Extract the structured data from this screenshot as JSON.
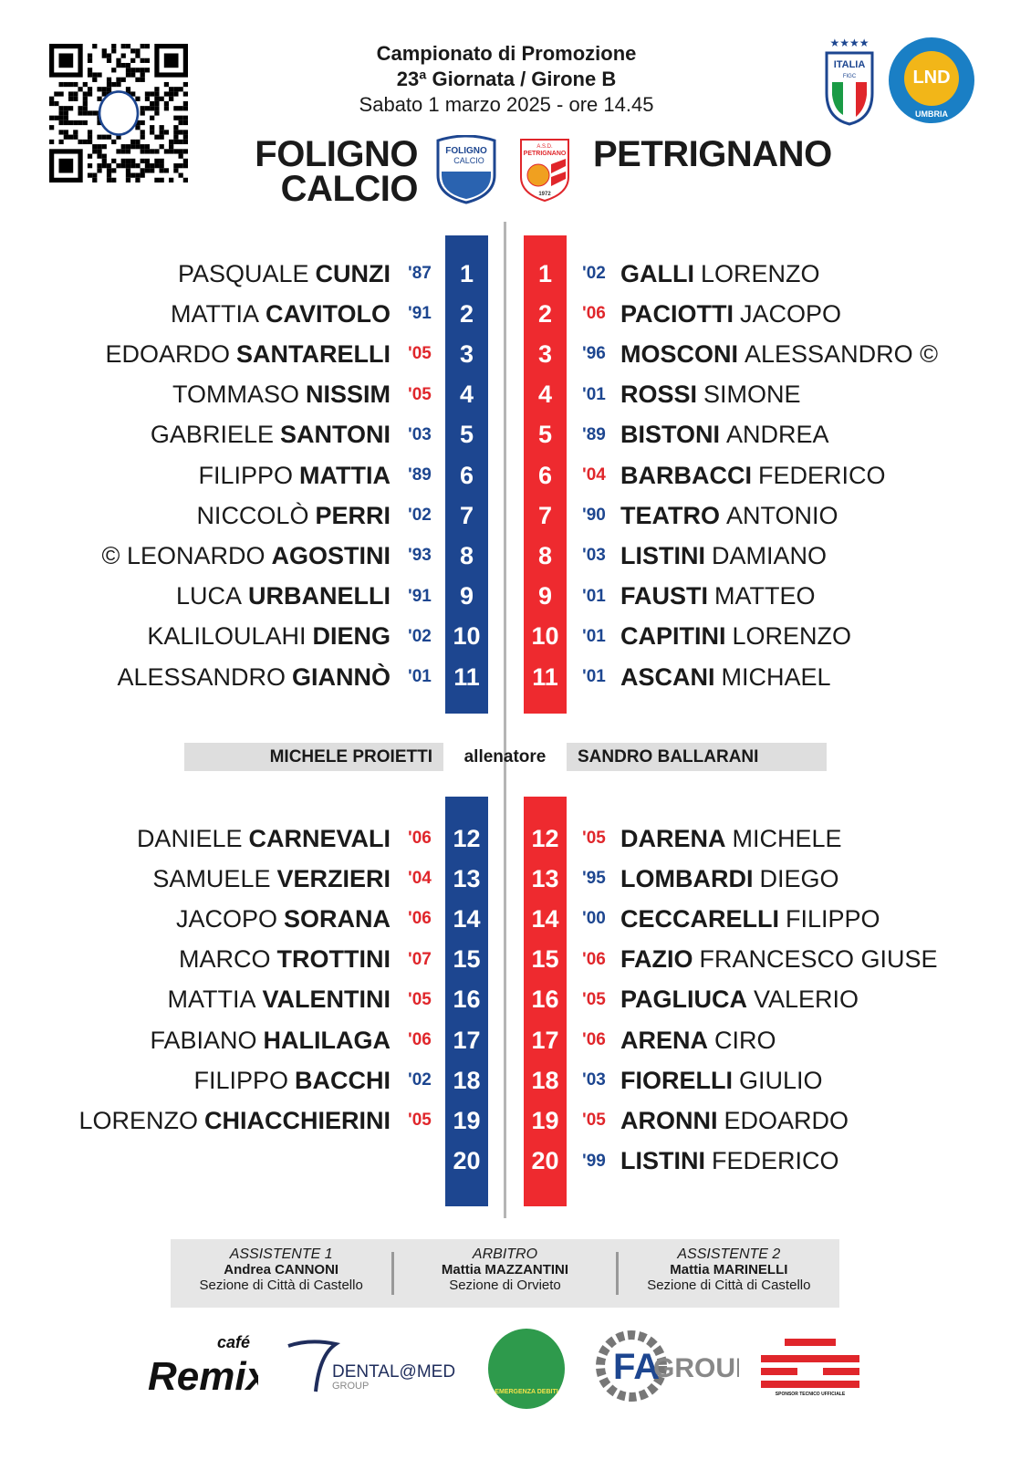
{
  "header": {
    "competition": "Campionato di Promozione",
    "round": "23ª Giornata / Girone B",
    "datetime": "Sabato 1 marzo 2025 - ore 14.45"
  },
  "home": {
    "name_line1": "FOLIGNO",
    "name_line2": "CALCIO",
    "logo_text": "FOLIGNO CALCIO",
    "coach": "MICHELE PROIETTI",
    "starters": [
      {
        "first": "PASQUALE",
        "last": "CUNZI",
        "year": "'87",
        "num": "1",
        "u": false
      },
      {
        "first": "MATTIA",
        "last": "CAVITOLO",
        "year": "'91",
        "num": "2",
        "u": false
      },
      {
        "first": "EDOARDO",
        "last": "SANTARELLI",
        "year": "'05",
        "num": "3",
        "u": true
      },
      {
        "first": "TOMMASO",
        "last": "NISSIM",
        "year": "'05",
        "num": "4",
        "u": true
      },
      {
        "first": "GABRIELE",
        "last": "SANTONI",
        "year": "'03",
        "num": "5",
        "u": false
      },
      {
        "first": "FILIPPO",
        "last": "MATTIA",
        "year": "'89",
        "num": "6",
        "u": false
      },
      {
        "first": "NICCOLÒ",
        "last": "PERRI",
        "year": "'02",
        "num": "7",
        "u": false
      },
      {
        "first": "© LEONARDO",
        "last": "AGOSTINI",
        "year": "'93",
        "num": "8",
        "u": false
      },
      {
        "first": "LUCA",
        "last": "URBANELLI",
        "year": "'91",
        "num": "9",
        "u": false
      },
      {
        "first": "KALILOULAHI",
        "last": "DIENG",
        "year": "'02",
        "num": "10",
        "u": false
      },
      {
        "first": "ALESSANDRO",
        "last": "GIANNÒ",
        "year": "'01",
        "num": "11",
        "u": false
      }
    ],
    "bench": [
      {
        "first": "DANIELE",
        "last": "CARNEVALI",
        "year": "'06",
        "num": "12",
        "u": true
      },
      {
        "first": "SAMUELE",
        "last": "VERZIERI",
        "year": "'04",
        "num": "13",
        "u": true
      },
      {
        "first": "JACOPO",
        "last": "SORANA",
        "year": "'06",
        "num": "14",
        "u": true
      },
      {
        "first": "MARCO",
        "last": "TROTTINI",
        "year": "'07",
        "num": "15",
        "u": true
      },
      {
        "first": "MATTIA",
        "last": "VALENTINI",
        "year": "'05",
        "num": "16",
        "u": true
      },
      {
        "first": "FABIANO",
        "last": "HALILAGA",
        "year": "'06",
        "num": "17",
        "u": true
      },
      {
        "first": "FILIPPO",
        "last": "BACCHI",
        "year": "'02",
        "num": "18",
        "u": false
      },
      {
        "first": "LORENZO",
        "last": "CHIACCHIERINI",
        "year": "'05",
        "num": "19",
        "u": true
      },
      {
        "first": "",
        "last": "",
        "year": "",
        "num": "20",
        "u": false
      }
    ]
  },
  "away": {
    "name": "PETRIGNANO",
    "logo_text": "A.S.D. PETRIGNANO",
    "logo_year": "1972",
    "coach": "SANDRO BALLARANI",
    "starters": [
      {
        "last": "GALLI",
        "first": "LORENZO",
        "year": "'02",
        "num": "1",
        "u": false
      },
      {
        "last": "PACIOTTI",
        "first": "JACOPO",
        "year": "'06",
        "num": "2",
        "u": true
      },
      {
        "last": "MOSCONI",
        "first": "ALESSANDRO ©",
        "year": "'96",
        "num": "3",
        "u": false
      },
      {
        "last": "ROSSI",
        "first": "SIMONE",
        "year": "'01",
        "num": "4",
        "u": false
      },
      {
        "last": "BISTONI",
        "first": "ANDREA",
        "year": "'89",
        "num": "5",
        "u": false
      },
      {
        "last": "BARBACCI",
        "first": "FEDERICO",
        "year": "'04",
        "num": "6",
        "u": true
      },
      {
        "last": "TEATRO",
        "first": "ANTONIO",
        "year": "'90",
        "num": "7",
        "u": false
      },
      {
        "last": "LISTINI",
        "first": "DAMIANO",
        "year": "'03",
        "num": "8",
        "u": false
      },
      {
        "last": "FAUSTI",
        "first": "MATTEO",
        "year": "'01",
        "num": "9",
        "u": false
      },
      {
        "last": "CAPITINI",
        "first": "LORENZO",
        "year": "'01",
        "num": "10",
        "u": false
      },
      {
        "last": "ASCANI",
        "first": "MICHAEL",
        "year": "'01",
        "num": "11",
        "u": false
      }
    ],
    "bench": [
      {
        "last": "DARENA",
        "first": "MICHELE",
        "year": "'05",
        "num": "12",
        "u": true
      },
      {
        "last": "LOMBARDI",
        "first": "DIEGO",
        "year": "'95",
        "num": "13",
        "u": false
      },
      {
        "last": "CECCARELLI",
        "first": "FILIPPO",
        "year": "'00",
        "num": "14",
        "u": false
      },
      {
        "last": "FAZIO",
        "first": "FRANCESCO GIUSE",
        "year": "'06",
        "num": "15",
        "u": true
      },
      {
        "last": "PAGLIUCA",
        "first": "VALERIO",
        "year": "'05",
        "num": "16",
        "u": true
      },
      {
        "last": "ARENA",
        "first": "CIRO",
        "year": "'06",
        "num": "17",
        "u": true
      },
      {
        "last": "FIORELLI",
        "first": "GIULIO",
        "year": "'03",
        "num": "18",
        "u": false
      },
      {
        "last": "ARONNI",
        "first": "EDOARDO",
        "year": "'05",
        "num": "19",
        "u": true
      },
      {
        "last": "LISTINI",
        "first": "FEDERICO",
        "year": "'99",
        "num": "20",
        "u": false
      }
    ]
  },
  "coach_label": "allenatore",
  "officials": [
    {
      "role": "ASSISTENTE 1",
      "name": "Andrea CANNONI",
      "section": "Sezione di Città di Castello"
    },
    {
      "role": "ARBITRO",
      "name": "Mattia MAZZANTINI",
      "section": "Sezione di Orvieto"
    },
    {
      "role": "ASSISTENTE 2",
      "name": "Mattia MARINELLI",
      "section": "Sezione di Città di Castello"
    }
  ],
  "badges": {
    "figc": "ITALIA",
    "figc_sub": "FIGC",
    "lnd": "LND",
    "lnd_sub": "UMBRIA"
  },
  "sponsors": {
    "remix": "Remix",
    "remix_cafe": "café",
    "dental": "DENTAL@MED",
    "dental_sub": "GROUP",
    "emergenza": "EMERGENZA DEBITI",
    "fagroup_fa": "FA",
    "fagroup_group": "GROUP",
    "ete_sub": "SPONSOR TECNICO UFFICIALE"
  },
  "colors": {
    "home": "#1d4690",
    "away": "#ee2a2f",
    "year_senior": "#1d4690",
    "year_under": "#e0262b"
  }
}
